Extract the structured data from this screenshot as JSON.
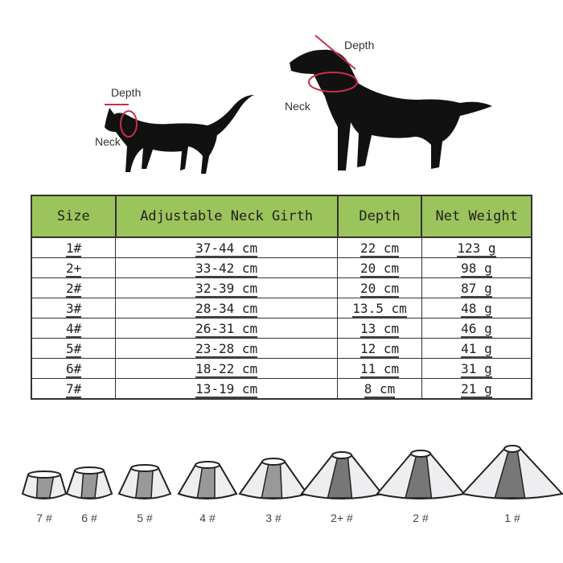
{
  "diagram": {
    "cat": {
      "depth_label": "Depth",
      "neck_label": "Neck"
    },
    "dog": {
      "depth_label": "Depth",
      "neck_label": "Neck"
    },
    "marker_color": "#c8304a"
  },
  "table": {
    "header_color": "#9cc45c",
    "headers": [
      "Size",
      "Adjustable Neck Girth",
      "Depth",
      "Net Weight"
    ],
    "rows": [
      [
        "1#",
        "37-44 cm",
        "22 cm",
        "123 g"
      ],
      [
        "2+",
        "33-42 cm",
        "20 cm",
        "98 g"
      ],
      [
        "2#",
        "32-39 cm",
        "20 cm",
        "87 g"
      ],
      [
        "3#",
        "28-34 cm",
        "13.5 cm",
        "48 g"
      ],
      [
        "4#",
        "26-31 cm",
        "13 cm",
        "46 g"
      ],
      [
        "5#",
        "23-28 cm",
        "12 cm",
        "41 g"
      ],
      [
        "6#",
        "18-22 cm",
        "11 cm",
        "31 g"
      ],
      [
        "7#",
        "13-19 cm",
        "8 cm",
        "21 g"
      ]
    ]
  },
  "cones": [
    {
      "label": "7 #"
    },
    {
      "label": "6 #"
    },
    {
      "label": "5 #"
    },
    {
      "label": "4 #"
    },
    {
      "label": "3 #"
    },
    {
      "label": "2+ #"
    },
    {
      "label": "2 #"
    },
    {
      "label": "1 #"
    }
  ]
}
